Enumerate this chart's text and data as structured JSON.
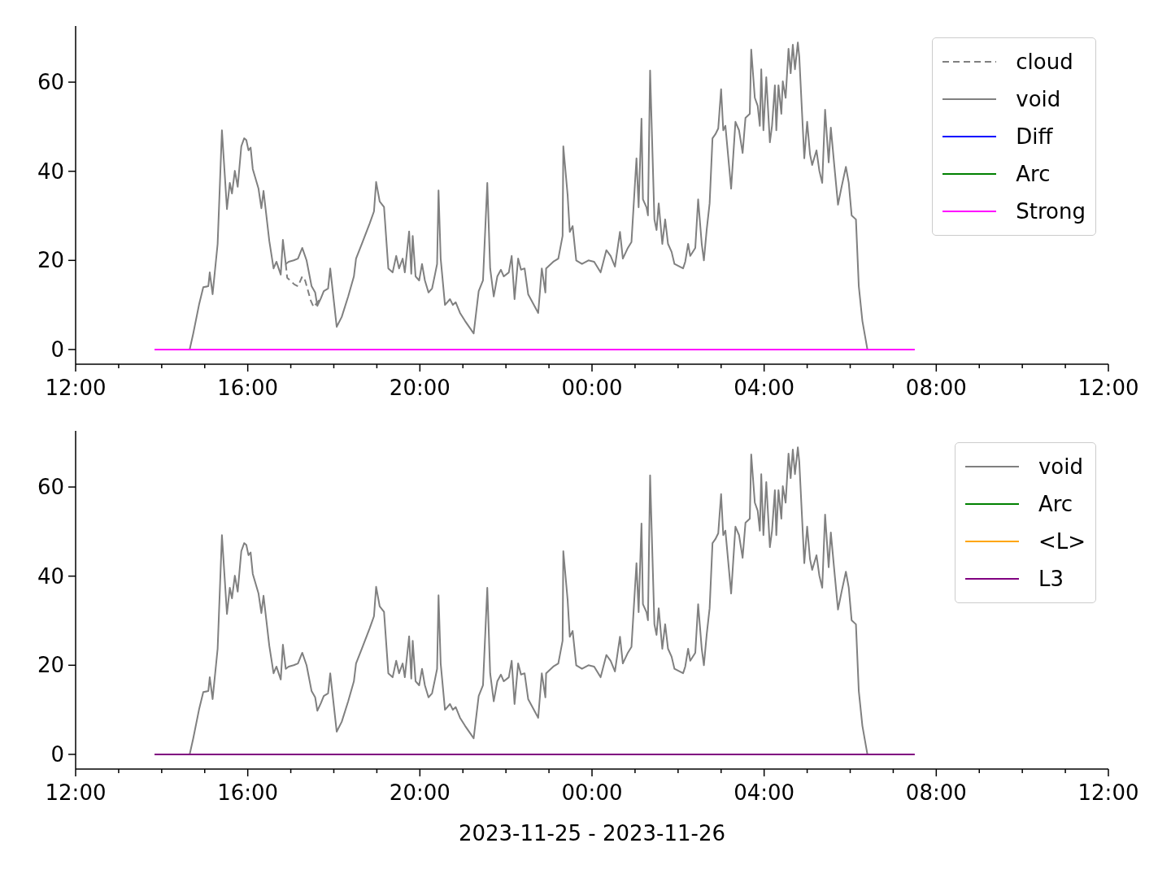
{
  "chart_data": [
    {
      "type": "line",
      "legend": "top right",
      "xlim": [
        "2023-11-25T12:00",
        "2023-11-26T12:00"
      ],
      "ylim": [
        -3.3,
        72.6
      ],
      "yticks": [
        0,
        20,
        40,
        60
      ],
      "xticks": [
        {
          "value": "2023-11-25T12:00",
          "label": "12:00"
        },
        {
          "value": "2023-11-25T13:00",
          "label": null
        },
        {
          "value": "2023-11-25T14:00",
          "label": null
        },
        {
          "value": "2023-11-25T15:00",
          "label": null
        },
        {
          "value": "2023-11-25T16:00",
          "label": "16:00"
        },
        {
          "value": "2023-11-25T17:00",
          "label": null
        },
        {
          "value": "2023-11-25T18:00",
          "label": null
        },
        {
          "value": "2023-11-25T19:00",
          "label": null
        },
        {
          "value": "2023-11-25T20:00",
          "label": "20:00"
        },
        {
          "value": "2023-11-25T21:00",
          "label": null
        },
        {
          "value": "2023-11-25T22:00",
          "label": null
        },
        {
          "value": "2023-11-25T23:00",
          "label": null
        },
        {
          "value": "2023-11-26T00:00",
          "label": "00:00"
        },
        {
          "value": "2023-11-26T01:00",
          "label": null
        },
        {
          "value": "2023-11-26T02:00",
          "label": null
        },
        {
          "value": "2023-11-26T03:00",
          "label": null
        },
        {
          "value": "2023-11-26T04:00",
          "label": "04:00"
        },
        {
          "value": "2023-11-26T05:00",
          "label": null
        },
        {
          "value": "2023-11-26T06:00",
          "label": null
        },
        {
          "value": "2023-11-26T07:00",
          "label": null
        },
        {
          "value": "2023-11-26T08:00",
          "label": "08:00"
        },
        {
          "value": "2023-11-26T09:00",
          "label": null
        },
        {
          "value": "2023-11-26T10:00",
          "label": null
        },
        {
          "value": "2023-11-26T11:00",
          "label": null
        },
        {
          "value": "2023-11-26T12:00",
          "label": "12:00"
        }
      ],
      "series": [
        {
          "name": "cloud",
          "color": "#808080",
          "line_style": "dashed",
          "x": [
            "2023-11-25T16:53",
            "2023-11-25T16:55",
            "2023-11-25T17:05",
            "2023-11-25T17:10",
            "2023-11-25T17:16",
            "2023-11-25T17:20",
            "2023-11-25T17:28",
            "2023-11-25T17:32",
            "2023-11-25T17:37",
            "2023-11-25T17:42"
          ],
          "values": [
            19.2,
            16.1,
            14.6,
            14.2,
            16.4,
            15.5,
            10.9,
            9.5,
            10.6,
            11.5
          ]
        },
        {
          "name": "void",
          "color": "#808080",
          "x": [
            "2023-11-25T14:39",
            "2023-11-25T14:44",
            "2023-11-25T14:52",
            "2023-11-25T14:58",
            "2023-11-25T15:05",
            "2023-11-25T15:07",
            "2023-11-25T15:11",
            "2023-11-25T15:18",
            "2023-11-25T15:24",
            "2023-11-25T15:31",
            "2023-11-25T15:35",
            "2023-11-25T15:38",
            "2023-11-25T15:42",
            "2023-11-25T15:46",
            "2023-11-25T15:51",
            "2023-11-25T15:55",
            "2023-11-25T15:58",
            "2023-11-25T16:01",
            "2023-11-25T16:04",
            "2023-11-25T16:07",
            "2023-11-25T16:15",
            "2023-11-25T16:19",
            "2023-11-25T16:22",
            "2023-11-25T16:30",
            "2023-11-25T16:36",
            "2023-11-25T16:40",
            "2023-11-25T16:46",
            "2023-11-25T16:49",
            "2023-11-25T16:53",
            "2023-11-25T16:57",
            "2023-11-25T17:04",
            "2023-11-25T17:10",
            "2023-11-25T17:16",
            "2023-11-25T17:22",
            "2023-11-25T17:29",
            "2023-11-25T17:34",
            "2023-11-25T17:37",
            "2023-11-25T17:42",
            "2023-11-25T17:46",
            "2023-11-25T17:52",
            "2023-11-25T17:55",
            "2023-11-25T18:04",
            "2023-11-25T18:11",
            "2023-11-25T18:20",
            "2023-11-25T18:28",
            "2023-11-25T18:31",
            "2023-11-25T18:39",
            "2023-11-25T18:50",
            "2023-11-25T18:56",
            "2023-11-25T18:59",
            "2023-11-25T19:04",
            "2023-11-25T19:10",
            "2023-11-25T19:16",
            "2023-11-25T19:22",
            "2023-11-25T19:27",
            "2023-11-25T19:31",
            "2023-11-25T19:36",
            "2023-11-25T19:39",
            "2023-11-25T19:45",
            "2023-11-25T19:48",
            "2023-11-25T19:50",
            "2023-11-25T19:54",
            "2023-11-25T19:59",
            "2023-11-25T20:03",
            "2023-11-25T20:07",
            "2023-11-25T20:12",
            "2023-11-25T20:17",
            "2023-11-25T20:21",
            "2023-11-25T20:24",
            "2023-11-25T20:26",
            "2023-11-25T20:29",
            "2023-11-25T20:35",
            "2023-11-25T20:42",
            "2023-11-25T20:46",
            "2023-11-25T20:50",
            "2023-11-25T20:56",
            "2023-11-25T21:03",
            "2023-11-25T21:15",
            "2023-11-25T21:22",
            "2023-11-25T21:28",
            "2023-11-25T21:34",
            "2023-11-25T21:38",
            "2023-11-25T21:43",
            "2023-11-25T21:48",
            "2023-11-25T21:53",
            "2023-11-25T21:57",
            "2023-11-25T22:04",
            "2023-11-25T22:08",
            "2023-11-25T22:12",
            "2023-11-25T22:17",
            "2023-11-25T22:21",
            "2023-11-25T22:26",
            "2023-11-25T22:31",
            "2023-11-25T22:45",
            "2023-11-25T22:50",
            "2023-11-25T22:55",
            "2023-11-25T22:56",
            "2023-11-25T23:06",
            "2023-11-25T23:13",
            "2023-11-25T23:19",
            "2023-11-25T23:20",
            "2023-11-25T23:26",
            "2023-11-25T23:29",
            "2023-11-25T23:33",
            "2023-11-25T23:38",
            "2023-11-25T23:46",
            "2023-11-25T23:55",
            "2023-11-26T00:03",
            "2023-11-26T00:12",
            "2023-11-26T00:20",
            "2023-11-26T00:26",
            "2023-11-26T00:32",
            "2023-11-26T00:39",
            "2023-11-26T00:43",
            "2023-11-26T00:50",
            "2023-11-26T00:55",
            "2023-11-26T01:02",
            "2023-11-26T01:05",
            "2023-11-26T01:09",
            "2023-11-26T01:11",
            "2023-11-26T01:16",
            "2023-11-26T01:18",
            "2023-11-26T01:21",
            "2023-11-26T01:27",
            "2023-11-26T01:30",
            "2023-11-26T01:33",
            "2023-11-26T01:38",
            "2023-11-26T01:42",
            "2023-11-26T01:46",
            "2023-11-26T01:51",
            "2023-11-26T01:55",
            "2023-11-26T02:07",
            "2023-11-26T02:10",
            "2023-11-26T02:14",
            "2023-11-26T02:17",
            "2023-11-26T02:24",
            "2023-11-26T02:28",
            "2023-11-26T02:33",
            "2023-11-26T02:36",
            "2023-11-26T02:40",
            "2023-11-26T02:44",
            "2023-11-26T02:48",
            "2023-11-26T02:52",
            "2023-11-26T02:56",
            "2023-11-26T03:00",
            "2023-11-26T03:03",
            "2023-11-26T03:06",
            "2023-11-26T03:14",
            "2023-11-26T03:20",
            "2023-11-26T03:25",
            "2023-11-26T03:30",
            "2023-11-26T03:34",
            "2023-11-26T03:40",
            "2023-11-26T03:42",
            "2023-11-26T03:47",
            "2023-11-26T03:51",
            "2023-11-26T03:54",
            "2023-11-26T03:56",
            "2023-11-26T03:59",
            "2023-11-26T04:03",
            "2023-11-26T04:08",
            "2023-11-26T04:11",
            "2023-11-26T04:15",
            "2023-11-26T04:17",
            "2023-11-26T04:20",
            "2023-11-26T04:24",
            "2023-11-26T04:26",
            "2023-11-26T04:30",
            "2023-11-26T04:34",
            "2023-11-26T04:37",
            "2023-11-26T04:40",
            "2023-11-26T04:43",
            "2023-11-26T04:47",
            "2023-11-26T04:49",
            "2023-11-26T04:56",
            "2023-11-26T05:00",
            "2023-11-26T05:04",
            "2023-11-26T05:07",
            "2023-11-26T05:13",
            "2023-11-26T05:17",
            "2023-11-26T05:21",
            "2023-11-26T05:25",
            "2023-11-26T05:30",
            "2023-11-26T05:33",
            "2023-11-26T05:38",
            "2023-11-26T05:43",
            "2023-11-26T05:48",
            "2023-11-26T05:54",
            "2023-11-26T05:58",
            "2023-11-26T06:02",
            "2023-11-26T06:08",
            "2023-11-26T06:12",
            "2023-11-26T06:17",
            "2023-11-26T06:24"
          ],
          "values": [
            0,
            3.6,
            10,
            14,
            14.2,
            17.3,
            12.4,
            23.7,
            49.2,
            31.5,
            37.4,
            35,
            40.1,
            36.5,
            45.6,
            47.4,
            47,
            44.7,
            45.3,
            40.5,
            36.1,
            31.7,
            35.6,
            24.4,
            18.2,
            19.7,
            16.8,
            24.6,
            19.2,
            19.7,
            20,
            20.4,
            22.8,
            20,
            14.2,
            12.8,
            9.8,
            11.5,
            13.1,
            13.7,
            18.2,
            5.1,
            7.3,
            11.9,
            16.4,
            20.4,
            23.7,
            28.3,
            31,
            37.6,
            33.2,
            32,
            18.2,
            17.3,
            21,
            18.2,
            20.4,
            17.3,
            26.5,
            17,
            25.5,
            16.4,
            15.5,
            19.2,
            15.5,
            12.8,
            13.7,
            16.8,
            19.2,
            35.7,
            20.4,
            10,
            11.3,
            10,
            10.6,
            8.2,
            6.4,
            3.6,
            13.1,
            15.5,
            37.4,
            18.2,
            11.9,
            16.4,
            17.9,
            16.4,
            17.3,
            21,
            11.3,
            20.4,
            17.9,
            18.2,
            12.4,
            8.2,
            18.2,
            12.8,
            18.2,
            19.7,
            20.4,
            25.5,
            45.6,
            34.7,
            26.4,
            27.7,
            20,
            19.2,
            20,
            19.7,
            17.3,
            22.3,
            21,
            18.6,
            26.4,
            20.4,
            22.8,
            24.1,
            42.9,
            31.9,
            51.8,
            33.7,
            31.9,
            30.1,
            62.6,
            29.2,
            26.8,
            32.8,
            23.7,
            29.2,
            23.7,
            21.9,
            19.2,
            18.2,
            19.7,
            23.7,
            21,
            22.8,
            33.7,
            23.7,
            20,
            27,
            32.8,
            47.4,
            48.3,
            49.6,
            58.4,
            49.2,
            50.2,
            36.1,
            51.1,
            49.2,
            44.1,
            52,
            52.9,
            67.3,
            56.5,
            54.7,
            50.2,
            62.9,
            49.2,
            61.1,
            46.5,
            50.2,
            59.3,
            49.2,
            59.3,
            52.9,
            60.2,
            56.5,
            67.5,
            62,
            68.4,
            62.9,
            68.9,
            65.7,
            42.9,
            51.1,
            43.8,
            41.4,
            44.7,
            40.1,
            37.4,
            53.8,
            42,
            49.8,
            41,
            32.5,
            36.5,
            41,
            37.4,
            30.1,
            29.2,
            14.2,
            6.4,
            0
          ]
        },
        {
          "name": "Diff",
          "color": "#0000ff"
        },
        {
          "name": "Arc",
          "color": "#008000"
        },
        {
          "name": "Strong",
          "color": "#ff00ff",
          "x": [
            "2023-11-25T13:50",
            "2023-11-26T07:30"
          ],
          "values": [
            0,
            0
          ]
        }
      ]
    },
    {
      "type": "line",
      "legend": "top right",
      "xlabel": "2023-11-25 - 2023-11-26",
      "xlim": [
        "2023-11-25T12:00",
        "2023-11-26T12:00"
      ],
      "ylim": [
        -3.3,
        72.6
      ],
      "yticks": [
        0,
        20,
        40,
        60
      ],
      "xticks": [
        {
          "value": "2023-11-25T12:00",
          "label": "12:00"
        },
        {
          "value": "2023-11-25T13:00",
          "label": null
        },
        {
          "value": "2023-11-25T14:00",
          "label": null
        },
        {
          "value": "2023-11-25T15:00",
          "label": null
        },
        {
          "value": "2023-11-25T16:00",
          "label": "16:00"
        },
        {
          "value": "2023-11-25T17:00",
          "label": null
        },
        {
          "value": "2023-11-25T18:00",
          "label": null
        },
        {
          "value": "2023-11-25T19:00",
          "label": null
        },
        {
          "value": "2023-11-25T20:00",
          "label": "20:00"
        },
        {
          "value": "2023-11-25T21:00",
          "label": null
        },
        {
          "value": "2023-11-25T22:00",
          "label": null
        },
        {
          "value": "2023-11-25T23:00",
          "label": null
        },
        {
          "value": "2023-11-26T00:00",
          "label": "00:00"
        },
        {
          "value": "2023-11-26T01:00",
          "label": null
        },
        {
          "value": "2023-11-26T02:00",
          "label": null
        },
        {
          "value": "2023-11-26T03:00",
          "label": null
        },
        {
          "value": "2023-11-26T04:00",
          "label": "04:00"
        },
        {
          "value": "2023-11-26T05:00",
          "label": null
        },
        {
          "value": "2023-11-26T06:00",
          "label": null
        },
        {
          "value": "2023-11-26T07:00",
          "label": null
        },
        {
          "value": "2023-11-26T08:00",
          "label": "08:00"
        },
        {
          "value": "2023-11-26T09:00",
          "label": null
        },
        {
          "value": "2023-11-26T10:00",
          "label": null
        },
        {
          "value": "2023-11-26T11:00",
          "label": null
        },
        {
          "value": "2023-11-26T12:00",
          "label": "12:00"
        }
      ],
      "series": [
        {
          "name": "void",
          "color": "#808080",
          "x": [
            "2023-11-25T14:39",
            "2023-11-25T14:44",
            "2023-11-25T14:52",
            "2023-11-25T14:58",
            "2023-11-25T15:05",
            "2023-11-25T15:07",
            "2023-11-25T15:11",
            "2023-11-25T15:18",
            "2023-11-25T15:24",
            "2023-11-25T15:31",
            "2023-11-25T15:35",
            "2023-11-25T15:38",
            "2023-11-25T15:42",
            "2023-11-25T15:46",
            "2023-11-25T15:51",
            "2023-11-25T15:55",
            "2023-11-25T15:58",
            "2023-11-25T16:01",
            "2023-11-25T16:04",
            "2023-11-25T16:07",
            "2023-11-25T16:15",
            "2023-11-25T16:19",
            "2023-11-25T16:22",
            "2023-11-25T16:30",
            "2023-11-25T16:36",
            "2023-11-25T16:40",
            "2023-11-25T16:46",
            "2023-11-25T16:49",
            "2023-11-25T16:53",
            "2023-11-25T16:57",
            "2023-11-25T17:04",
            "2023-11-25T17:10",
            "2023-11-25T17:16",
            "2023-11-25T17:22",
            "2023-11-25T17:29",
            "2023-11-25T17:34",
            "2023-11-25T17:37",
            "2023-11-25T17:42",
            "2023-11-25T17:46",
            "2023-11-25T17:52",
            "2023-11-25T17:55",
            "2023-11-25T18:04",
            "2023-11-25T18:11",
            "2023-11-25T18:20",
            "2023-11-25T18:28",
            "2023-11-25T18:31",
            "2023-11-25T18:39",
            "2023-11-25T18:50",
            "2023-11-25T18:56",
            "2023-11-25T18:59",
            "2023-11-25T19:04",
            "2023-11-25T19:10",
            "2023-11-25T19:16",
            "2023-11-25T19:22",
            "2023-11-25T19:27",
            "2023-11-25T19:31",
            "2023-11-25T19:36",
            "2023-11-25T19:39",
            "2023-11-25T19:45",
            "2023-11-25T19:48",
            "2023-11-25T19:50",
            "2023-11-25T19:54",
            "2023-11-25T19:59",
            "2023-11-25T20:03",
            "2023-11-25T20:07",
            "2023-11-25T20:12",
            "2023-11-25T20:17",
            "2023-11-25T20:21",
            "2023-11-25T20:24",
            "2023-11-25T20:26",
            "2023-11-25T20:29",
            "2023-11-25T20:35",
            "2023-11-25T20:42",
            "2023-11-25T20:46",
            "2023-11-25T20:50",
            "2023-11-25T20:56",
            "2023-11-25T21:03",
            "2023-11-25T21:15",
            "2023-11-25T21:22",
            "2023-11-25T21:28",
            "2023-11-25T21:34",
            "2023-11-25T21:38",
            "2023-11-25T21:43",
            "2023-11-25T21:48",
            "2023-11-25T21:53",
            "2023-11-25T21:57",
            "2023-11-25T22:04",
            "2023-11-25T22:08",
            "2023-11-25T22:12",
            "2023-11-25T22:17",
            "2023-11-25T22:21",
            "2023-11-25T22:26",
            "2023-11-25T22:31",
            "2023-11-25T22:45",
            "2023-11-25T22:50",
            "2023-11-25T22:55",
            "2023-11-25T22:56",
            "2023-11-25T23:06",
            "2023-11-25T23:13",
            "2023-11-25T23:19",
            "2023-11-25T23:20",
            "2023-11-25T23:26",
            "2023-11-25T23:29",
            "2023-11-25T23:33",
            "2023-11-25T23:38",
            "2023-11-25T23:46",
            "2023-11-25T23:55",
            "2023-11-26T00:03",
            "2023-11-26T00:12",
            "2023-11-26T00:20",
            "2023-11-26T00:26",
            "2023-11-26T00:32",
            "2023-11-26T00:39",
            "2023-11-26T00:43",
            "2023-11-26T00:50",
            "2023-11-26T00:55",
            "2023-11-26T01:02",
            "2023-11-26T01:05",
            "2023-11-26T01:09",
            "2023-11-26T01:11",
            "2023-11-26T01:16",
            "2023-11-26T01:18",
            "2023-11-26T01:21",
            "2023-11-26T01:27",
            "2023-11-26T01:30",
            "2023-11-26T01:33",
            "2023-11-26T01:38",
            "2023-11-26T01:42",
            "2023-11-26T01:46",
            "2023-11-26T01:51",
            "2023-11-26T01:55",
            "2023-11-26T02:07",
            "2023-11-26T02:10",
            "2023-11-26T02:14",
            "2023-11-26T02:17",
            "2023-11-26T02:24",
            "2023-11-26T02:28",
            "2023-11-26T02:33",
            "2023-11-26T02:36",
            "2023-11-26T02:40",
            "2023-11-26T02:44",
            "2023-11-26T02:48",
            "2023-11-26T02:52",
            "2023-11-26T02:56",
            "2023-11-26T03:00",
            "2023-11-26T03:03",
            "2023-11-26T03:06",
            "2023-11-26T03:14",
            "2023-11-26T03:20",
            "2023-11-26T03:25",
            "2023-11-26T03:30",
            "2023-11-26T03:34",
            "2023-11-26T03:40",
            "2023-11-26T03:42",
            "2023-11-26T03:47",
            "2023-11-26T03:51",
            "2023-11-26T03:54",
            "2023-11-26T03:56",
            "2023-11-26T03:59",
            "2023-11-26T04:03",
            "2023-11-26T04:08",
            "2023-11-26T04:11",
            "2023-11-26T04:15",
            "2023-11-26T04:17",
            "2023-11-26T04:20",
            "2023-11-26T04:24",
            "2023-11-26T04:26",
            "2023-11-26T04:30",
            "2023-11-26T04:34",
            "2023-11-26T04:37",
            "2023-11-26T04:40",
            "2023-11-26T04:43",
            "2023-11-26T04:47",
            "2023-11-26T04:49",
            "2023-11-26T04:56",
            "2023-11-26T05:00",
            "2023-11-26T05:04",
            "2023-11-26T05:07",
            "2023-11-26T05:13",
            "2023-11-26T05:17",
            "2023-11-26T05:21",
            "2023-11-26T05:25",
            "2023-11-26T05:30",
            "2023-11-26T05:33",
            "2023-11-26T05:38",
            "2023-11-26T05:43",
            "2023-11-26T05:48",
            "2023-11-26T05:54",
            "2023-11-26T05:58",
            "2023-11-26T06:02",
            "2023-11-26T06:08",
            "2023-11-26T06:12",
            "2023-11-26T06:17",
            "2023-11-26T06:24"
          ],
          "values": [
            0,
            3.6,
            10,
            14,
            14.2,
            17.3,
            12.4,
            23.7,
            49.2,
            31.5,
            37.4,
            35,
            40.1,
            36.5,
            45.6,
            47.4,
            47,
            44.7,
            45.3,
            40.5,
            36.1,
            31.7,
            35.6,
            24.4,
            18.2,
            19.7,
            16.8,
            24.6,
            19.2,
            19.7,
            20,
            20.4,
            22.8,
            20,
            14.2,
            12.8,
            9.8,
            11.5,
            13.1,
            13.7,
            18.2,
            5.1,
            7.3,
            11.9,
            16.4,
            20.4,
            23.7,
            28.3,
            31,
            37.6,
            33.2,
            32,
            18.2,
            17.3,
            21,
            18.2,
            20.4,
            17.3,
            26.5,
            17,
            25.5,
            16.4,
            15.5,
            19.2,
            15.5,
            12.8,
            13.7,
            16.8,
            19.2,
            35.7,
            20.4,
            10,
            11.3,
            10,
            10.6,
            8.2,
            6.4,
            3.6,
            13.1,
            15.5,
            37.4,
            18.2,
            11.9,
            16.4,
            17.9,
            16.4,
            17.3,
            21,
            11.3,
            20.4,
            17.9,
            18.2,
            12.4,
            8.2,
            18.2,
            12.8,
            18.2,
            19.7,
            20.4,
            25.5,
            45.6,
            34.7,
            26.4,
            27.7,
            20,
            19.2,
            20,
            19.7,
            17.3,
            22.3,
            21,
            18.6,
            26.4,
            20.4,
            22.8,
            24.1,
            42.9,
            31.9,
            51.8,
            33.7,
            31.9,
            30.1,
            62.6,
            29.2,
            26.8,
            32.8,
            23.7,
            29.2,
            23.7,
            21.9,
            19.2,
            18.2,
            19.7,
            23.7,
            21,
            22.8,
            33.7,
            23.7,
            20,
            27,
            32.8,
            47.4,
            48.3,
            49.6,
            58.4,
            49.2,
            50.2,
            36.1,
            51.1,
            49.2,
            44.1,
            52,
            52.9,
            67.3,
            56.5,
            54.7,
            50.2,
            62.9,
            49.2,
            61.1,
            46.5,
            50.2,
            59.3,
            49.2,
            59.3,
            52.9,
            60.2,
            56.5,
            67.5,
            62,
            68.4,
            62.9,
            68.9,
            65.7,
            42.9,
            51.1,
            43.8,
            41.4,
            44.7,
            40.1,
            37.4,
            53.8,
            42,
            49.8,
            41,
            32.5,
            36.5,
            41,
            37.4,
            30.1,
            29.2,
            14.2,
            6.4,
            0
          ]
        },
        {
          "name": "Arc",
          "color": "#008000"
        },
        {
          "name": "<L>",
          "color": "#ffa500"
        },
        {
          "name": "L3",
          "color": "#800080",
          "x": [
            "2023-11-25T13:50",
            "2023-11-26T07:30"
          ],
          "values": [
            0,
            0
          ]
        }
      ]
    }
  ]
}
